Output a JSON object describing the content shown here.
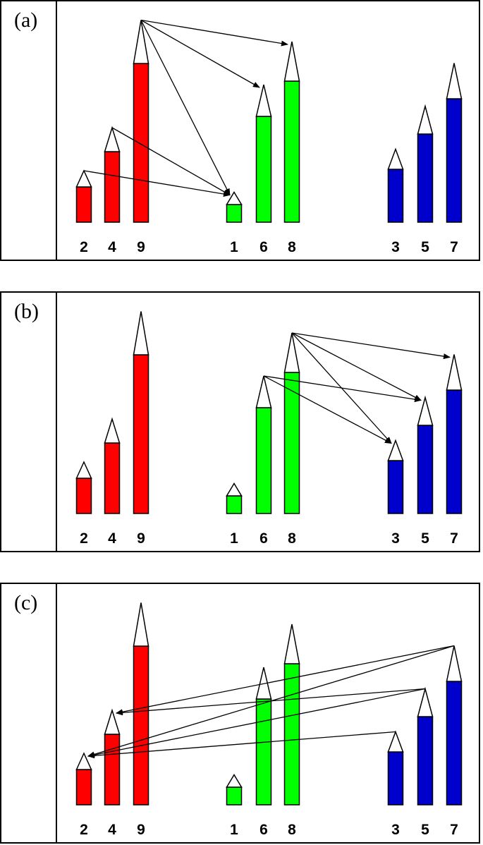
{
  "colors": {
    "group_1": "#ff0000",
    "group_2": "#00ff00",
    "group_3": "#0000cc",
    "tip": "#ffffff",
    "outline": "#000000"
  },
  "panels": [
    {
      "label": "(a)",
      "pencils": [
        {
          "label": "2",
          "group": 1,
          "value": 2
        },
        {
          "label": "4",
          "group": 1,
          "value": 4
        },
        {
          "label": "9",
          "group": 1,
          "value": 9
        },
        {
          "label": "1",
          "group": 2,
          "value": 1
        },
        {
          "label": "6",
          "group": 2,
          "value": 6
        },
        {
          "label": "8",
          "group": 2,
          "value": 8
        },
        {
          "label": "3",
          "group": 3,
          "value": 3
        },
        {
          "label": "5",
          "group": 3,
          "value": 5
        },
        {
          "label": "7",
          "group": 3,
          "value": 7
        }
      ],
      "arrows": [
        {
          "from": "2",
          "to": "1"
        },
        {
          "from": "4",
          "to": "1"
        },
        {
          "from": "9",
          "to": "1"
        },
        {
          "from": "9",
          "to": "6"
        },
        {
          "from": "9",
          "to": "8"
        }
      ]
    },
    {
      "label": "(b)",
      "pencils": [
        {
          "label": "2",
          "group": 1,
          "value": 2
        },
        {
          "label": "4",
          "group": 1,
          "value": 4
        },
        {
          "label": "9",
          "group": 1,
          "value": 9
        },
        {
          "label": "1",
          "group": 2,
          "value": 1
        },
        {
          "label": "6",
          "group": 2,
          "value": 6
        },
        {
          "label": "8",
          "group": 2,
          "value": 8
        },
        {
          "label": "3",
          "group": 3,
          "value": 3
        },
        {
          "label": "5",
          "group": 3,
          "value": 5
        },
        {
          "label": "7",
          "group": 3,
          "value": 7
        }
      ],
      "arrows": [
        {
          "from": "6",
          "to": "3"
        },
        {
          "from": "6",
          "to": "5"
        },
        {
          "from": "8",
          "to": "3"
        },
        {
          "from": "8",
          "to": "5"
        },
        {
          "from": "8",
          "to": "7"
        }
      ]
    },
    {
      "label": "(c)",
      "pencils": [
        {
          "label": "2",
          "group": 1,
          "value": 2
        },
        {
          "label": "4",
          "group": 1,
          "value": 4
        },
        {
          "label": "9",
          "group": 1,
          "value": 9
        },
        {
          "label": "1",
          "group": 2,
          "value": 1
        },
        {
          "label": "6",
          "group": 2,
          "value": 6
        },
        {
          "label": "8",
          "group": 2,
          "value": 8
        },
        {
          "label": "3",
          "group": 3,
          "value": 3
        },
        {
          "label": "5",
          "group": 3,
          "value": 5
        },
        {
          "label": "7",
          "group": 3,
          "value": 7
        }
      ],
      "arrows": [
        {
          "from": "3",
          "to": "2"
        },
        {
          "from": "5",
          "to": "2"
        },
        {
          "from": "5",
          "to": "4"
        },
        {
          "from": "7",
          "to": "2"
        },
        {
          "from": "7",
          "to": "4"
        }
      ]
    }
  ]
}
